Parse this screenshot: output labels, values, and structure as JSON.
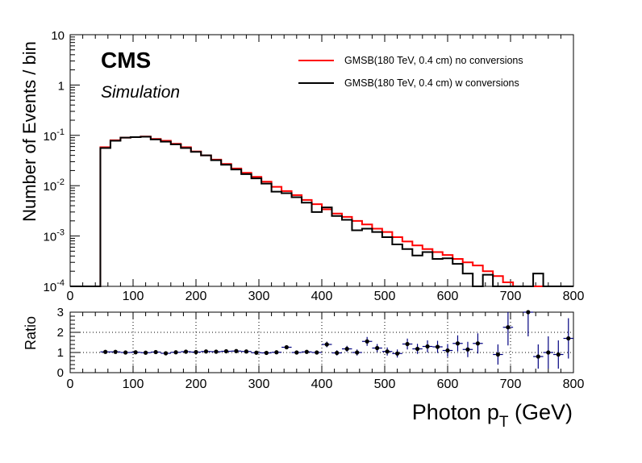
{
  "experiment_label": "CMS",
  "sublabel": "Simulation",
  "chart_data": [
    {
      "type": "line",
      "subtype": "step-histogram",
      "xlabel_main": "Photon p",
      "xlabel_sub": "T",
      "xlabel_unit": " (GeV)",
      "ylabel": "Number of Events / bin",
      "yscale": "log",
      "xlim": [
        0,
        800
      ],
      "ylim": [
        0.0001,
        10
      ],
      "x_ticks": [
        "0",
        "100",
        "200",
        "300",
        "400",
        "500",
        "600",
        "700",
        "800"
      ],
      "y_ticks": [
        {
          "base": "10",
          "exp": "-4"
        },
        {
          "base": "10",
          "exp": "-3"
        },
        {
          "base": "10",
          "exp": "-2"
        },
        {
          "base": "10",
          "exp": "-1"
        },
        {
          "base": "1",
          "exp": ""
        },
        {
          "base": "10",
          "exp": ""
        }
      ],
      "bin_edges": [
        0,
        16,
        32,
        48,
        64,
        80,
        96,
        112,
        128,
        144,
        160,
        176,
        192,
        208,
        224,
        240,
        256,
        272,
        288,
        304,
        320,
        336,
        352,
        368,
        384,
        400,
        416,
        432,
        448,
        464,
        480,
        496,
        512,
        528,
        544,
        560,
        576,
        592,
        608,
        624,
        640,
        656,
        672,
        688,
        704,
        720,
        736,
        752,
        768,
        784,
        800
      ],
      "series": [
        {
          "name": "GMSB(180 TeV, 0.4 cm) no conversions",
          "color": "#ff0000",
          "values": [
            0.0001,
            0.0001,
            0.0001,
            0.058,
            0.08,
            0.09,
            0.092,
            0.095,
            0.085,
            0.078,
            0.068,
            0.058,
            0.048,
            0.04,
            0.033,
            0.027,
            0.022,
            0.018,
            0.015,
            0.012,
            0.0095,
            0.0078,
            0.0065,
            0.0052,
            0.0043,
            0.0034,
            0.0028,
            0.0024,
            0.002,
            0.0017,
            0.0014,
            0.0012,
            0.00095,
            0.00078,
            0.00065,
            0.00055,
            0.00048,
            0.00042,
            0.00035,
            0.0003,
            0.00026,
            0.0002,
            0.00016,
            0.00012,
            0.0001,
            0.0001,
            0.0001,
            0.0001,
            0.0001,
            0.0001
          ]
        },
        {
          "name": "GMSB(180 TeV, 0.4 cm) w conversions",
          "color": "#000000",
          "values": [
            0.0001,
            0.0001,
            0.0001,
            0.056,
            0.078,
            0.09,
            0.092,
            0.094,
            0.083,
            0.075,
            0.066,
            0.056,
            0.047,
            0.04,
            0.032,
            0.026,
            0.021,
            0.017,
            0.014,
            0.011,
            0.0076,
            0.0071,
            0.0059,
            0.0046,
            0.003,
            0.0037,
            0.0025,
            0.0021,
            0.0013,
            0.0014,
            0.0012,
            0.00095,
            0.00068,
            0.00055,
            0.00041,
            0.00048,
            0.00035,
            0.00036,
            0.00028,
            0.00018,
            0.0001,
            0.00017,
            0.0001,
            0.0001,
            0.0001,
            0.0001,
            0.00018,
            0.0001,
            0.0001,
            0.0001
          ]
        }
      ]
    },
    {
      "type": "scatter",
      "subtype": "ratio-with-errors",
      "ylabel": "Ratio",
      "xlim": [
        0,
        800
      ],
      "ylim": [
        0,
        3
      ],
      "x_ticks": [
        "0",
        "100",
        "200",
        "300",
        "400",
        "500",
        "600",
        "700",
        "800"
      ],
      "y_ticks": [
        "0",
        "1",
        "2",
        "3"
      ],
      "grid": true,
      "marker_color": "#000000",
      "error_color": "#000080",
      "points": [
        {
          "x": 56,
          "y": 1.03,
          "err": 0.03
        },
        {
          "x": 72,
          "y": 1.03,
          "err": 0.03
        },
        {
          "x": 88,
          "y": 1.0,
          "err": 0.03
        },
        {
          "x": 104,
          "y": 1.01,
          "err": 0.03
        },
        {
          "x": 120,
          "y": 0.99,
          "err": 0.03
        },
        {
          "x": 136,
          "y": 1.02,
          "err": 0.03
        },
        {
          "x": 152,
          "y": 0.96,
          "err": 0.03
        },
        {
          "x": 168,
          "y": 1.01,
          "err": 0.03
        },
        {
          "x": 184,
          "y": 1.04,
          "err": 0.04
        },
        {
          "x": 200,
          "y": 1.02,
          "err": 0.04
        },
        {
          "x": 216,
          "y": 1.05,
          "err": 0.04
        },
        {
          "x": 232,
          "y": 1.04,
          "err": 0.05
        },
        {
          "x": 248,
          "y": 1.06,
          "err": 0.05
        },
        {
          "x": 264,
          "y": 1.07,
          "err": 0.05
        },
        {
          "x": 280,
          "y": 1.05,
          "err": 0.06
        },
        {
          "x": 296,
          "y": 0.99,
          "err": 0.06
        },
        {
          "x": 312,
          "y": 0.98,
          "err": 0.07
        },
        {
          "x": 328,
          "y": 1.01,
          "err": 0.07
        },
        {
          "x": 344,
          "y": 1.26,
          "err": 0.08
        },
        {
          "x": 360,
          "y": 1.0,
          "err": 0.08
        },
        {
          "x": 376,
          "y": 1.03,
          "err": 0.09
        },
        {
          "x": 392,
          "y": 1.0,
          "err": 0.1
        },
        {
          "x": 408,
          "y": 1.4,
          "err": 0.14
        },
        {
          "x": 424,
          "y": 0.98,
          "err": 0.13
        },
        {
          "x": 440,
          "y": 1.18,
          "err": 0.15
        },
        {
          "x": 456,
          "y": 1.0,
          "err": 0.15
        },
        {
          "x": 472,
          "y": 1.55,
          "err": 0.22
        },
        {
          "x": 488,
          "y": 1.22,
          "err": 0.2
        },
        {
          "x": 504,
          "y": 1.05,
          "err": 0.2
        },
        {
          "x": 520,
          "y": 0.95,
          "err": 0.2
        },
        {
          "x": 536,
          "y": 1.42,
          "err": 0.27
        },
        {
          "x": 552,
          "y": 1.18,
          "err": 0.25
        },
        {
          "x": 568,
          "y": 1.3,
          "err": 0.3
        },
        {
          "x": 584,
          "y": 1.28,
          "err": 0.3
        },
        {
          "x": 600,
          "y": 1.1,
          "err": 0.32
        },
        {
          "x": 616,
          "y": 1.45,
          "err": 0.4
        },
        {
          "x": 632,
          "y": 1.15,
          "err": 0.38
        },
        {
          "x": 648,
          "y": 1.45,
          "err": 0.5
        },
        {
          "x": 680,
          "y": 0.9,
          "err": 0.5
        },
        {
          "x": 696,
          "y": 2.25,
          "err": 0.9
        },
        {
          "x": 728,
          "y": 3.0,
          "err": 1.2
        },
        {
          "x": 744,
          "y": 0.8,
          "err": 0.6
        },
        {
          "x": 760,
          "y": 1.0,
          "err": 0.8
        },
        {
          "x": 776,
          "y": 0.9,
          "err": 0.7
        },
        {
          "x": 792,
          "y": 1.7,
          "err": 1.0
        }
      ]
    }
  ]
}
